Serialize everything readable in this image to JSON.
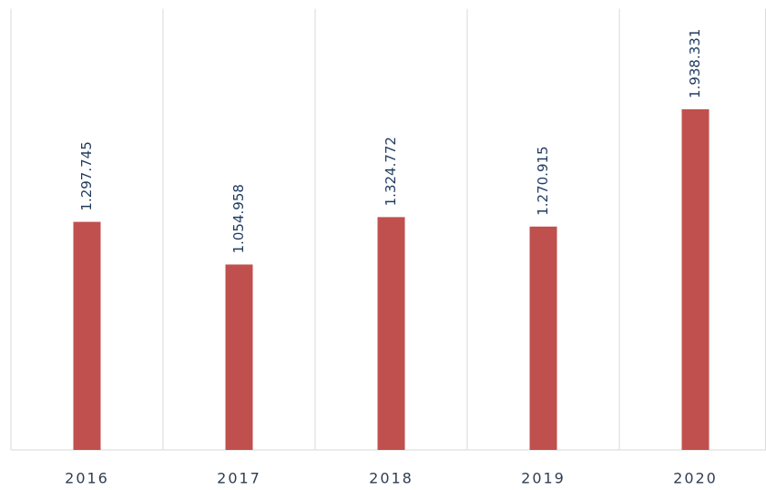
{
  "chart_data": {
    "type": "bar",
    "categories": [
      "2016",
      "2017",
      "2018",
      "2019",
      "2020"
    ],
    "values": [
      1297745,
      1054958,
      1324772,
      1270915,
      1938331
    ],
    "value_labels": [
      "1.297.745",
      "1.054.958",
      "1.324.772",
      "1.270.915",
      "1.938.331"
    ],
    "color": "#c0504d",
    "ylim": [
      0,
      2500000
    ]
  }
}
